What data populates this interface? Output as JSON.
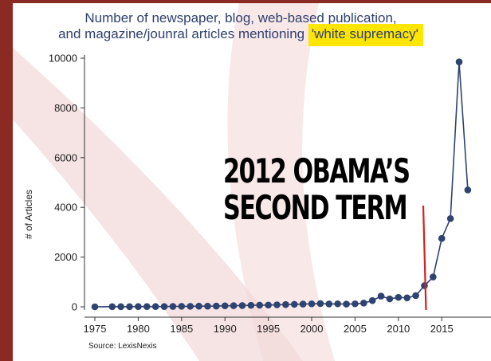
{
  "chart_data": {
    "type": "line",
    "title_line1": "Number of newspaper, blog, web-based publication,",
    "title_line2": "and magazine/jounral articles mentioning ",
    "title_highlight": "'white supremacy'",
    "ylabel": "# of Articles",
    "xlabel": "",
    "source": "Source: LexisNexis",
    "annotation_line1": "2012 OBAMA’S",
    "annotation_line2": "SECOND TERM",
    "xlim": [
      1975,
      2017
    ],
    "ylim": [
      0,
      10000
    ],
    "x_ticks": [
      1975,
      1980,
      1985,
      1990,
      1995,
      2000,
      2005,
      2010,
      2015
    ],
    "y_ticks": [
      0,
      2000,
      4000,
      6000,
      8000,
      10000
    ],
    "annotation_points_to": 2013,
    "grid": false,
    "line_color": "#2e4370",
    "marker_color": "#2e4370",
    "annotation_line_color": "#d42020",
    "highlight_color": "#ffe600",
    "frame_color": "#8b2a22",
    "x": [
      1975,
      1977,
      1978,
      1979,
      1980,
      1981,
      1982,
      1983,
      1984,
      1985,
      1986,
      1987,
      1988,
      1989,
      1990,
      1991,
      1992,
      1993,
      1994,
      1995,
      1996,
      1997,
      1998,
      1999,
      2000,
      2001,
      2002,
      2003,
      2004,
      2005,
      2006,
      2007,
      2008,
      2009,
      2010,
      2011,
      2012,
      2013,
      2014,
      2015,
      2016,
      2017,
      2018
    ],
    "values": [
      0,
      5,
      5,
      5,
      10,
      10,
      10,
      10,
      15,
      20,
      20,
      25,
      25,
      30,
      40,
      45,
      50,
      60,
      65,
      70,
      80,
      90,
      100,
      110,
      120,
      130,
      115,
      120,
      110,
      120,
      150,
      250,
      430,
      320,
      380,
      360,
      450,
      850,
      1200,
      2750,
      3550,
      9850,
      4700
    ]
  }
}
